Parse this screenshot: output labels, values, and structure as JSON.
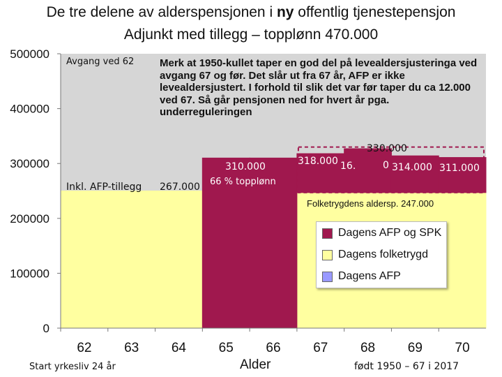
{
  "chart_data": {
    "type": "bar",
    "title_line1_pre": "De tre delene av alderspensjonen i ",
    "title_line1_bold": "ny",
    "title_line1_post": " offentlig tjenestepensjon",
    "title_line2": "Adjunkt med tillegg – topplønn 470.000",
    "xlabel": "Alder",
    "ylabel": "",
    "ylim": [
      0,
      500000
    ],
    "yticks": [
      "0",
      "100000",
      "200000",
      "300000",
      "400000",
      "500000"
    ],
    "categories": [
      "62",
      "63",
      "64",
      "65",
      "66",
      "67",
      "68",
      "69",
      "70"
    ],
    "series": [
      {
        "name": "Dagens folketrygd",
        "color": "#ffffa0",
        "values": [
          250000,
          250000,
          250000,
          0,
          0,
          247000,
          247000,
          247000,
          247000
        ]
      },
      {
        "name": "Dagens AFP og SPK",
        "color": "#a0184e",
        "values": [
          0,
          0,
          0,
          310000,
          310000,
          71000,
          80000,
          67000,
          64000
        ]
      },
      {
        "name": "Dagens AFP",
        "color": "#9999ff",
        "values": [
          0,
          0,
          0,
          0,
          0,
          0,
          0,
          0,
          0
        ]
      }
    ],
    "reference_level": 330000,
    "reference_label": "330.000",
    "grid": true,
    "legend_position": "bottom-right",
    "annotations": {
      "avgang": "Avgang ved 62",
      "note": "Merk at 1950-kullet taper en  god del på levealdersjusteringa ved avgang 67 og før. Det slår ut fra 67 år, AFP er ikke levealdersjustert.  I forhold til slik det var før taper du ca 12.000 ved 67. Så går pensjonen ned for hvert år pga. underreguleringen",
      "inkl": "Inkl. AFP-tillegg",
      "v267": "267.000",
      "v310": "310.000",
      "topplonn": "66 % topplønn",
      "v318": "318.000",
      "v318_extra": "16.",
      "v314_prefix": "0",
      "v314": "314.000",
      "v311": "311.000",
      "folketrygd": "Folketrygdens aldersp.   247.000"
    },
    "footer": {
      "left": "Start yrkesliv 24 år",
      "right": "født 1950 – 67 i 2017"
    }
  }
}
